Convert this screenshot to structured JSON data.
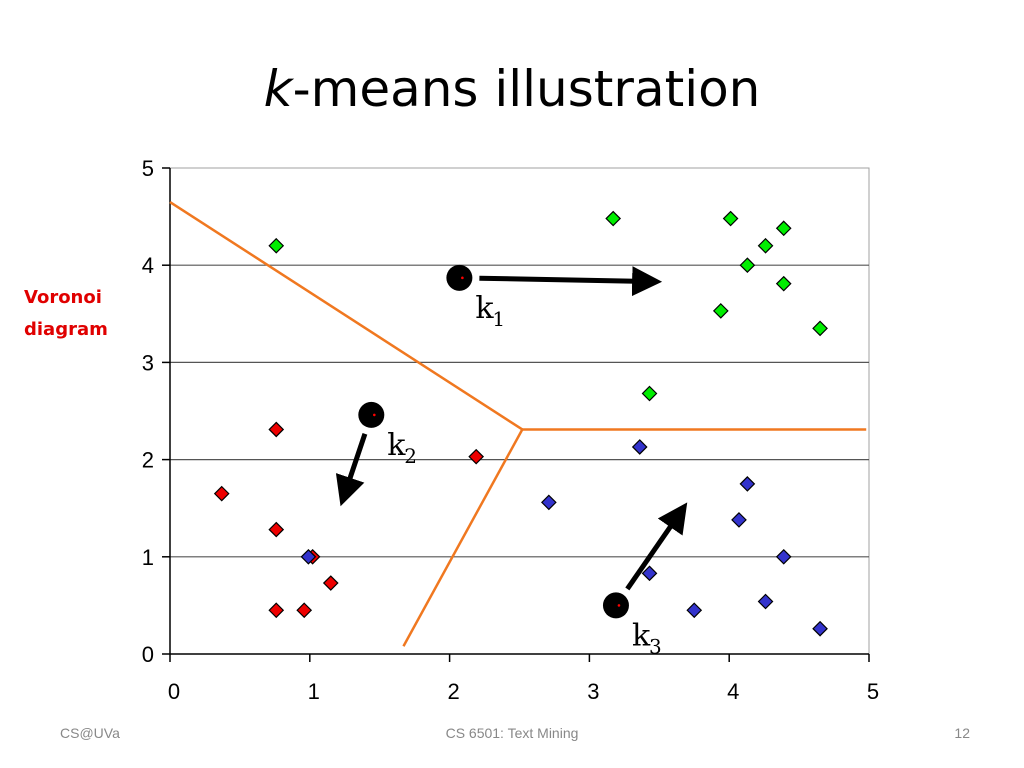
{
  "slide": {
    "title_var": "k",
    "title_rest": "-means illustration",
    "side_label_lines": [
      "Voronoi",
      "diagram"
    ],
    "footer_left": "CS@UVa",
    "footer_center": "CS 6501: Text Mining",
    "footer_right": "12"
  },
  "chart_data": {
    "type": "scatter",
    "title": "",
    "xlabel": "",
    "ylabel": "",
    "xlim": [
      0,
      5
    ],
    "ylim": [
      0,
      5
    ],
    "xticks": [
      "0",
      "1",
      "2",
      "3",
      "4",
      "5"
    ],
    "yticks": [
      "0",
      "1",
      "2",
      "3",
      "4",
      "5"
    ],
    "grid": "horizontal",
    "series": [
      {
        "color": "#00ee00",
        "marker": "diamond",
        "points": [
          [
            0.76,
            4.2
          ],
          [
            3.17,
            4.48
          ],
          [
            4.01,
            4.48
          ],
          [
            4.39,
            4.38
          ],
          [
            4.26,
            4.2
          ],
          [
            4.13,
            4.0
          ],
          [
            4.39,
            3.81
          ],
          [
            3.94,
            3.53
          ],
          [
            4.65,
            3.35
          ],
          [
            3.43,
            2.68
          ]
        ]
      },
      {
        "color": "#ee0000",
        "marker": "diamond",
        "points": [
          [
            0.76,
            2.31
          ],
          [
            2.19,
            2.03
          ],
          [
            0.37,
            1.65
          ],
          [
            0.76,
            1.28
          ],
          [
            1.02,
            1.0
          ],
          [
            1.15,
            0.73
          ],
          [
            0.76,
            0.45
          ],
          [
            0.96,
            0.45
          ]
        ]
      },
      {
        "color": "#3333cc",
        "marker": "diamond",
        "points": [
          [
            3.36,
            2.13
          ],
          [
            2.71,
            1.56
          ],
          [
            4.13,
            1.75
          ],
          [
            4.07,
            1.38
          ],
          [
            0.99,
            1.0
          ],
          [
            4.39,
            1.0
          ],
          [
            3.43,
            0.83
          ],
          [
            3.75,
            0.45
          ],
          [
            4.26,
            0.54
          ],
          [
            4.65,
            0.26
          ]
        ]
      }
    ],
    "centroids": [
      {
        "label": "k",
        "subscript": "1",
        "x": 2.07,
        "y": 3.87,
        "arrow_to": [
          3.52,
          3.83
        ]
      },
      {
        "label": "k",
        "subscript": "2",
        "x": 1.44,
        "y": 2.46,
        "arrow_to": [
          1.22,
          1.52
        ]
      },
      {
        "label": "k",
        "subscript": "3",
        "x": 3.19,
        "y": 0.5,
        "arrow_to": [
          3.7,
          1.56
        ]
      }
    ],
    "voronoi": {
      "color": "#f07820",
      "lines": [
        [
          [
            0.0,
            4.65
          ],
          [
            2.52,
            2.31
          ]
        ],
        [
          [
            2.52,
            2.31
          ],
          [
            4.98,
            2.31
          ]
        ],
        [
          [
            2.52,
            2.31
          ],
          [
            1.67,
            0.08
          ]
        ]
      ]
    }
  }
}
